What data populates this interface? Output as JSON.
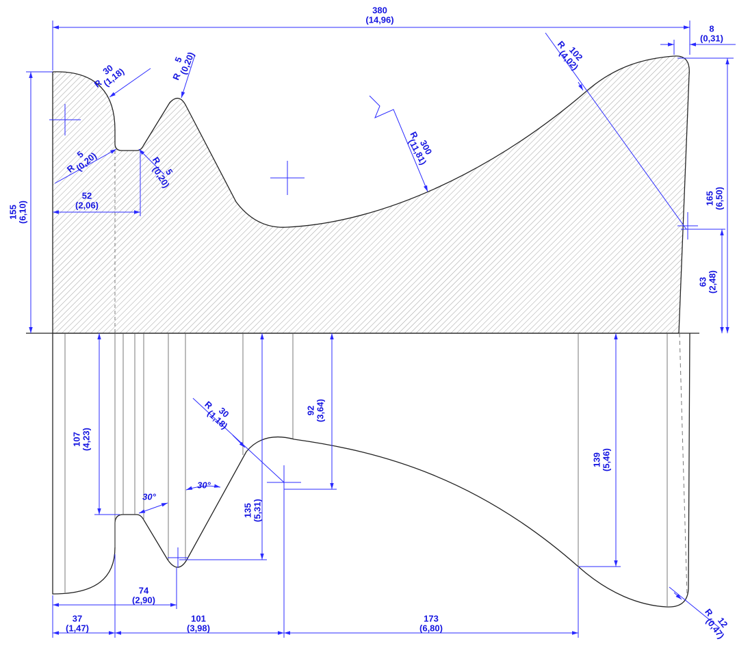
{
  "dimensions": [
    {
      "value": "380",
      "inch": "(14,96)"
    },
    {
      "value": "8",
      "inch": "(0,31)"
    },
    {
      "prefix": "R",
      "value": "102",
      "inch": "(4,02)"
    },
    {
      "prefix": "R",
      "value": "30",
      "inch": "(1,18)"
    },
    {
      "prefix": "R",
      "value": "5",
      "inch": "(0,20)"
    },
    {
      "prefix": "R",
      "value": "300",
      "inch": "(11,81)"
    },
    {
      "prefix": "R",
      "value": "5",
      "inch": "(0,20)"
    },
    {
      "prefix": "R",
      "value": "5",
      "inch": "(0,20)"
    },
    {
      "value": "52",
      "inch": "(2,06)"
    },
    {
      "value": "155",
      "inch": "(6,10)"
    },
    {
      "value": "165",
      "inch": "(6,50)"
    },
    {
      "value": "63",
      "inch": "(2,48)"
    },
    {
      "value": "107",
      "inch": "(4,23)"
    },
    {
      "value": "92",
      "inch": "(3,64)"
    },
    {
      "prefix": "R",
      "value": "30",
      "inch": "(1,18)"
    },
    {
      "value": "135",
      "inch": "(5,31)"
    },
    {
      "value": "139",
      "inch": "(5,46)"
    },
    {
      "value": "74",
      "inch": "(2,90)"
    },
    {
      "value": "37",
      "inch": "(1,47)"
    },
    {
      "value": "101",
      "inch": "(3,98)"
    },
    {
      "value": "173",
      "inch": "(6,80)"
    },
    {
      "prefix": "R",
      "value": "12",
      "inch": "(0,47)"
    }
  ],
  "angles": [
    "30°",
    "30°"
  ]
}
